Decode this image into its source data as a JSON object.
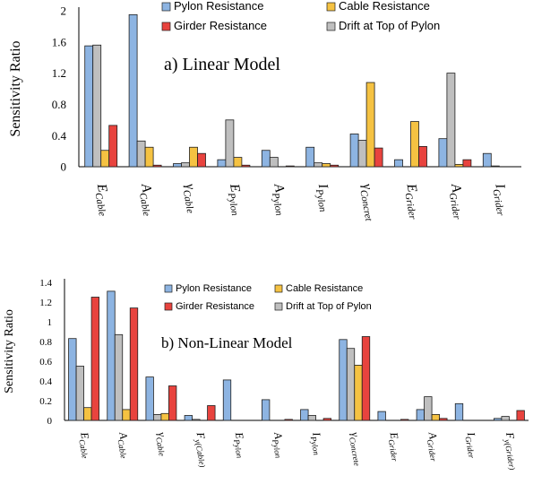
{
  "chart_data": [
    {
      "type": "bar",
      "title": "a) Linear Model",
      "ylabel": "Sensitivity Ratio",
      "ylim": [
        0,
        2
      ],
      "yticks": [
        "0",
        "0.4",
        "0.8",
        "1.2",
        "1.6",
        "2"
      ],
      "grid": false,
      "legend": "top",
      "categories": [
        {
          "base": "E",
          "sub": "Cable"
        },
        {
          "base": "A",
          "sub": "Cable"
        },
        {
          "base": "γ",
          "sub": "Cable"
        },
        {
          "base": "E",
          "sub": "Pylon"
        },
        {
          "base": "A",
          "sub": "Pylon"
        },
        {
          "base": "I",
          "sub": "Pylon"
        },
        {
          "base": "γ",
          "sub": "Concret"
        },
        {
          "base": "E",
          "sub": "Grider"
        },
        {
          "base": "A",
          "sub": "Grider"
        },
        {
          "base": "I",
          "sub": "Grider"
        }
      ],
      "series": [
        {
          "name": "Pylon Resistance",
          "color": "#8db4e2",
          "values": [
            1.55,
            1.95,
            0.04,
            0.09,
            0.21,
            0.25,
            0.42,
            0.09,
            0.36,
            0.17
          ]
        },
        {
          "name": "Drift at Top of Pylon",
          "color": "#bfbfbf",
          "values": [
            1.56,
            0.33,
            0.05,
            0.6,
            0.12,
            0.05,
            0.34,
            0.0,
            1.2,
            0.01
          ]
        },
        {
          "name": "Cable Resistance",
          "color": "#f5c242",
          "values": [
            0.21,
            0.25,
            0.25,
            0.12,
            0.0,
            0.04,
            1.08,
            0.58,
            0.03,
            0.0
          ]
        },
        {
          "name": "Girder Resistance",
          "color": "#e8433e",
          "values": [
            0.53,
            0.02,
            0.17,
            0.02,
            0.01,
            0.02,
            0.24,
            0.26,
            0.09,
            0.0
          ]
        }
      ]
    },
    {
      "type": "bar",
      "title": "b) Non-Linear Model",
      "ylabel": "Sensitivity Ratio",
      "ylim": [
        0,
        1.4
      ],
      "yticks": [
        "0",
        "0.2",
        "0.4",
        "0.6",
        "0.8",
        "1",
        "1.2",
        "1.4"
      ],
      "grid": false,
      "legend": "top",
      "categories": [
        {
          "base": "E",
          "sub": "Cable"
        },
        {
          "base": "A",
          "sub": "Cable"
        },
        {
          "base": "γ",
          "sub": "Cable"
        },
        {
          "base": "F",
          "sub": "y(Cable)"
        },
        {
          "base": "E",
          "sub": "Pylon"
        },
        {
          "base": "A",
          "sub": "Pylon"
        },
        {
          "base": "I",
          "sub": "Pylon"
        },
        {
          "base": "γ",
          "sub": "Concrete"
        },
        {
          "base": "E",
          "sub": "Grider"
        },
        {
          "base": "A",
          "sub": "Grider"
        },
        {
          "base": "I",
          "sub": "Grider"
        },
        {
          "base": "F",
          "sub": "y(Grider)"
        }
      ],
      "series": [
        {
          "name": "Pylon Resistance",
          "color": "#8db4e2",
          "values": [
            0.83,
            1.31,
            0.44,
            0.05,
            0.41,
            0.21,
            0.11,
            0.82,
            0.09,
            0.11,
            0.17,
            0.02
          ]
        },
        {
          "name": "Drift at Top of Pylon",
          "color": "#bfbfbf",
          "values": [
            0.55,
            0.87,
            0.06,
            0.01,
            0.0,
            0.0,
            0.05,
            0.73,
            0.0,
            0.24,
            0.0,
            0.04
          ]
        },
        {
          "name": "Cable Resistance",
          "color": "#f5c242",
          "values": [
            0.13,
            0.11,
            0.07,
            0.0,
            0.0,
            0.0,
            0.0,
            0.56,
            0.0,
            0.06,
            0.0,
            0.0
          ]
        },
        {
          "name": "Girder Resistance",
          "color": "#e8433e",
          "values": [
            1.25,
            1.14,
            0.35,
            0.15,
            0.0,
            0.01,
            0.02,
            0.85,
            0.01,
            0.02,
            0.0,
            0.1
          ]
        }
      ]
    }
  ]
}
